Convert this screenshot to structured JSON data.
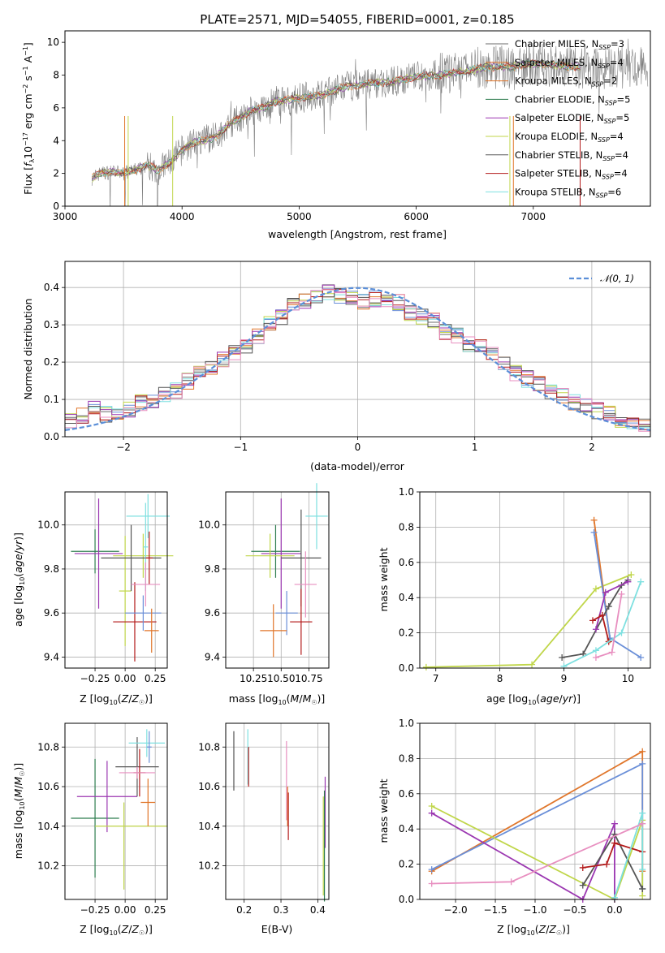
{
  "colors": {
    "palette": [
      "#6b6b6b",
      "#e0762b",
      "#6a8fd8",
      "#c0d64a",
      "#9b37b1",
      "#7ee0e0",
      "#555555",
      "#b31b1b",
      "#e88fc0"
    ],
    "gaussian": "#5b8fd8"
  },
  "chart_data": [
    {
      "type": "line",
      "title": "PLATE=2571, MJD=54055, FIBERID=0001, z=0.185",
      "xlabel": "wavelength [Angstrom, rest frame]",
      "ylabel": "Flux [fλ10⁻¹⁷ erg cm⁻² s⁻¹ A⁻¹]",
      "xlim": [
        3000,
        8000
      ],
      "ylim": [
        0,
        10.7
      ],
      "xticks": [
        "3000",
        "4000",
        "5000",
        "6000",
        "7000"
      ],
      "yticks": [
        "0",
        "2",
        "4",
        "6",
        "8",
        "10"
      ],
      "grid": false,
      "legend_position": "right",
      "series": [
        {
          "name": "Chabrier MILES, N_SSP=3",
          "color": "#6b6b6b"
        },
        {
          "name": "Salpeter MILES, N_SSP=4",
          "color": "#e0762b"
        },
        {
          "name": "Kroupa MILES, N_SSP=2",
          "color": "#e0762b"
        },
        {
          "name": "Chabrier ELODIE, N_SSP=5",
          "color": "#2e7d4f"
        },
        {
          "name": "Salpeter ELODIE, N_SSP=5",
          "color": "#9b37b1"
        },
        {
          "name": "Kroupa ELODIE, N_SSP=4",
          "color": "#c0d64a"
        },
        {
          "name": "Chabrier STELIB, N_SSP=4",
          "color": "#555555"
        },
        {
          "name": "Salpeter STELIB, N_SSP=4",
          "color": "#b31b1b"
        },
        {
          "name": "Kroupa STELIB, N_SSP=6",
          "color": "#7ee0e0"
        }
      ],
      "legend_display": [
        {
          "pre": "Chabrier MILES, N",
          "sub": "SSP",
          "post": "=3"
        },
        {
          "pre": "Salpeter MILES, N",
          "sub": "SSP",
          "post": "=4"
        },
        {
          "pre": "Kroupa MILES, N",
          "sub": "SSP",
          "post": "=2"
        },
        {
          "pre": "Chabrier ELODIE, N",
          "sub": "SSP",
          "post": "=5"
        },
        {
          "pre": "Salpeter ELODIE, N",
          "sub": "SSP",
          "post": "=5"
        },
        {
          "pre": "Kroupa ELODIE, N",
          "sub": "SSP",
          "post": "=4"
        },
        {
          "pre": "Chabrier STELIB, N",
          "sub": "SSP",
          "post": "=4"
        },
        {
          "pre": "Salpeter STELIB, N",
          "sub": "SSP",
          "post": "=4"
        },
        {
          "pre": "Kroupa STELIB, N",
          "sub": "SSP",
          "post": "=6"
        }
      ],
      "spectrum_envelope": {
        "x": [
          3230,
          3300,
          3400,
          3500,
          3600,
          3700,
          3800,
          3900,
          4000,
          4100,
          4200,
          4300,
          4400,
          4500,
          4600,
          4700,
          4800,
          4900,
          5000,
          5200,
          5400,
          5600,
          5800,
          6000,
          6200,
          6400,
          6600,
          6800,
          7000,
          7200,
          7400
        ],
        "y": [
          1.7,
          2.0,
          2.1,
          2.0,
          2.2,
          2.5,
          2.2,
          2.7,
          3.4,
          3.9,
          4.0,
          4.3,
          5.0,
          5.4,
          5.9,
          6.0,
          6.4,
          6.5,
          6.6,
          6.8,
          7.3,
          7.5,
          7.6,
          7.9,
          8.0,
          8.2,
          8.5,
          8.5,
          8.7,
          8.6,
          8.5
        ]
      }
    },
    {
      "type": "bar",
      "xlabel": "(data-model)/error",
      "ylabel": "Normed distribution",
      "xlim": [
        -2.5,
        2.5
      ],
      "ylim": [
        0,
        0.47
      ],
      "xticks": [
        "−2",
        "−1",
        "0",
        "1",
        "2"
      ],
      "yticks": [
        "0.0",
        "0.1",
        "0.2",
        "0.3",
        "0.4"
      ],
      "grid": true,
      "legend_position": "top-right",
      "legend": "𝒩(0, 1)",
      "histogram_bins": [
        -2.5,
        -2.4,
        -2.3,
        -2.2,
        -2.1,
        -2.0,
        -1.9,
        -1.8,
        -1.7,
        -1.6,
        -1.5,
        -1.4,
        -1.3,
        -1.2,
        -1.1,
        -1.0,
        -0.9,
        -0.8,
        -0.7,
        -0.6,
        -0.5,
        -0.4,
        -0.3,
        -0.2,
        -0.1,
        0.0,
        0.1,
        0.2,
        0.3,
        0.4,
        0.5,
        0.6,
        0.7,
        0.8,
        0.9,
        1.0,
        1.1,
        1.2,
        1.3,
        1.4,
        1.5,
        1.6,
        1.7,
        1.8,
        1.9,
        2.0,
        2.1,
        2.2,
        2.3,
        2.4,
        2.5
      ],
      "histogram_mean": [
        0.045,
        0.055,
        0.075,
        0.06,
        0.065,
        0.075,
        0.09,
        0.1,
        0.11,
        0.125,
        0.15,
        0.17,
        0.19,
        0.205,
        0.225,
        0.24,
        0.27,
        0.3,
        0.32,
        0.35,
        0.36,
        0.37,
        0.39,
        0.38,
        0.37,
        0.36,
        0.37,
        0.37,
        0.36,
        0.33,
        0.32,
        0.31,
        0.28,
        0.27,
        0.25,
        0.24,
        0.22,
        0.2,
        0.17,
        0.155,
        0.14,
        0.12,
        0.11,
        0.09,
        0.085,
        0.07,
        0.06,
        0.045,
        0.035,
        0.03
      ],
      "gaussian_mean": 0,
      "gaussian_sigma": 1
    },
    {
      "type": "scatter",
      "xlabel": "Z [log₁₀(Z/Z☉)]",
      "ylabel": "age  [log₁₀(age/yr)]",
      "xlim": [
        -0.5,
        0.35
      ],
      "ylim": [
        9.35,
        10.15
      ],
      "xticks": [
        -0.25,
        0.0,
        0.25
      ],
      "yticks": [
        9.4,
        9.6,
        9.8,
        10.0
      ],
      "xtick_labels": [
        "−0.25",
        "0.00",
        "0.25"
      ],
      "ytick_labels": [
        "9.4",
        "9.6",
        "9.8",
        "10.0"
      ],
      "grid": true,
      "errorbars": [
        {
          "x": -0.25,
          "xerr": 0.2,
          "y": 9.88,
          "yerr": 0.1,
          "color": "#2e7d4f"
        },
        {
          "x": -0.22,
          "xerr": 0.2,
          "y": 9.87,
          "yerr": 0.25,
          "color": "#9b37b1"
        },
        {
          "x": 0.15,
          "xerr": 0.25,
          "y": 9.86,
          "yerr": 0.1,
          "color": "#c0d64a"
        },
        {
          "x": 0.0,
          "xerr": 0.05,
          "y": 9.7,
          "yerr": 0.25,
          "color": "#c0d64a"
        },
        {
          "x": 0.05,
          "xerr": 0.25,
          "y": 9.85,
          "yerr": 0.15,
          "color": "#555555"
        },
        {
          "x": 0.19,
          "xerr": 0.18,
          "y": 10.04,
          "yerr": 0.1,
          "color": "#7ee0e0"
        },
        {
          "x": 0.17,
          "xerr": 0.02,
          "y": 9.9,
          "yerr": 0.2,
          "color": "#7ee0e0"
        },
        {
          "x": 0.2,
          "xerr": 0.03,
          "y": 9.85,
          "yerr": 0.12,
          "color": "#b31b1b"
        },
        {
          "x": 0.08,
          "xerr": 0.18,
          "y": 9.56,
          "yerr": 0.18,
          "color": "#b31b1b"
        },
        {
          "x": 0.17,
          "xerr": 0.12,
          "y": 9.73,
          "yerr": 0.1,
          "color": "#e88fc0"
        },
        {
          "x": 0.15,
          "xerr": 0.15,
          "y": 9.6,
          "yerr": 0.08,
          "color": "#6a8fd8"
        },
        {
          "x": 0.22,
          "xerr": 0.06,
          "y": 9.52,
          "yerr": 0.1,
          "color": "#e0762b"
        }
      ]
    },
    {
      "type": "scatter",
      "xlabel": "mass [log₁₀(M/M☉)]",
      "ylabel": "",
      "xlim": [
        10.0,
        10.93
      ],
      "ylim": [
        9.35,
        10.15
      ],
      "xticks": [
        10.25,
        10.5,
        10.75
      ],
      "yticks": [
        9.4,
        9.6,
        9.8,
        10.0
      ],
      "xtick_labels": [
        "10.25",
        "10.50",
        "10.75"
      ],
      "ytick_labels": [
        "9.4",
        "9.6",
        "9.8",
        "10.0"
      ],
      "grid": true,
      "errorbars": [
        {
          "x": 10.45,
          "xerr": 0.22,
          "y": 9.88,
          "yerr": 0.12,
          "color": "#2e7d4f"
        },
        {
          "x": 10.5,
          "xerr": 0.18,
          "y": 9.87,
          "yerr": 0.25,
          "color": "#9b37b1"
        },
        {
          "x": 10.4,
          "xerr": 0.22,
          "y": 9.86,
          "yerr": 0.1,
          "color": "#c0d64a"
        },
        {
          "x": 10.68,
          "xerr": 0.18,
          "y": 9.85,
          "yerr": 0.22,
          "color": "#555555"
        },
        {
          "x": 10.82,
          "xerr": 0.1,
          "y": 10.04,
          "yerr": 0.15,
          "color": "#7ee0e0"
        },
        {
          "x": 10.72,
          "xerr": 0.1,
          "y": 9.73,
          "yerr": 0.15,
          "color": "#e88fc0"
        },
        {
          "x": 10.55,
          "xerr": 0.1,
          "y": 9.6,
          "yerr": 0.1,
          "color": "#6a8fd8"
        },
        {
          "x": 10.43,
          "xerr": 0.12,
          "y": 9.52,
          "yerr": 0.12,
          "color": "#e0762b"
        },
        {
          "x": 10.68,
          "xerr": 0.1,
          "y": 9.56,
          "yerr": 0.15,
          "color": "#b31b1b"
        }
      ]
    },
    {
      "type": "line",
      "xlabel": "age  [log₁₀(age/yr)]",
      "ylabel": "mass weight",
      "xlim": [
        6.75,
        10.35
      ],
      "ylim": [
        0,
        1.0
      ],
      "xticks": [
        7,
        8,
        9,
        10
      ],
      "yticks": [
        0.0,
        0.2,
        0.4,
        0.6,
        0.8,
        1.0
      ],
      "xtick_labels": [
        "7",
        "8",
        "9",
        "10"
      ],
      "ytick_labels": [
        "0.0",
        "0.2",
        "0.4",
        "0.6",
        "0.8",
        "1.0"
      ],
      "grid": true,
      "series": [
        {
          "color": "#c0d64a",
          "x": [
            6.85,
            8.5,
            9.5,
            10.05
          ],
          "y": [
            0.005,
            0.02,
            0.45,
            0.53
          ]
        },
        {
          "color": "#e0762b",
          "x": [
            9.47,
            9.72
          ],
          "y": [
            0.84,
            0.16
          ]
        },
        {
          "color": "#6a8fd8",
          "x": [
            9.47,
            9.72,
            10.2
          ],
          "y": [
            0.77,
            0.17,
            0.06
          ]
        },
        {
          "color": "#555555",
          "x": [
            8.97,
            9.3,
            9.7,
            9.9,
            10.0
          ],
          "y": [
            0.06,
            0.08,
            0.35,
            0.47,
            0.5
          ]
        },
        {
          "color": "#9b37b1",
          "x": [
            9.5,
            9.65,
            10.0
          ],
          "y": [
            0.22,
            0.43,
            0.49
          ]
        },
        {
          "color": "#b31b1b",
          "x": [
            9.45,
            9.6,
            9.7
          ],
          "y": [
            0.27,
            0.3,
            0.15
          ]
        },
        {
          "color": "#7ee0e0",
          "x": [
            9.0,
            9.5,
            9.9,
            10.2
          ],
          "y": [
            0.01,
            0.1,
            0.2,
            0.49
          ]
        },
        {
          "color": "#e88fc0",
          "x": [
            9.5,
            9.75,
            9.9
          ],
          "y": [
            0.06,
            0.09,
            0.42
          ]
        }
      ]
    },
    {
      "type": "scatter",
      "xlabel": "Z [log₁₀(Z/Z☉)]",
      "ylabel": "mass [log₁₀(M/M☉)]",
      "xlim": [
        -0.5,
        0.35
      ],
      "ylim": [
        10.03,
        10.92
      ],
      "xticks": [
        -0.25,
        0.0,
        0.25
      ],
      "yticks": [
        10.2,
        10.4,
        10.6,
        10.8
      ],
      "xtick_labels": [
        "−0.25",
        "0.00",
        "0.25"
      ],
      "ytick_labels": [
        "10.2",
        "10.4",
        "10.6",
        "10.8"
      ],
      "grid": true,
      "errorbars": [
        {
          "x": -0.25,
          "xerr": 0.2,
          "y": 10.44,
          "yerr": 0.3,
          "color": "#2e7d4f"
        },
        {
          "x": -0.15,
          "xerr": 0.25,
          "y": 10.55,
          "yerr": 0.18,
          "color": "#9b37b1"
        },
        {
          "x": 0.05,
          "xerr": 0.3,
          "y": 10.4,
          "yerr": 0.0,
          "color": "#c0d64a"
        },
        {
          "x": -0.01,
          "xerr": 0.0,
          "y": 10.3,
          "yerr": 0.22,
          "color": "#c0d64a"
        },
        {
          "x": 0.1,
          "xerr": 0.18,
          "y": 10.7,
          "yerr": 0.15,
          "color": "#555555"
        },
        {
          "x": 0.18,
          "xerr": 0.15,
          "y": 10.82,
          "yerr": 0.07,
          "color": "#7ee0e0"
        },
        {
          "x": 0.12,
          "xerr": 0.05,
          "y": 10.67,
          "yerr": 0.12,
          "color": "#b31b1b"
        },
        {
          "x": 0.1,
          "xerr": 0.15,
          "y": 10.67,
          "yerr": 0.03,
          "color": "#e88fc0"
        },
        {
          "x": 0.19,
          "xerr": 0.06,
          "y": 10.52,
          "yerr": 0.12,
          "color": "#e0762b"
        },
        {
          "x": 0.2,
          "xerr": 0.02,
          "y": 10.8,
          "yerr": 0.08,
          "color": "#6a8fd8"
        }
      ]
    },
    {
      "type": "scatter",
      "xlabel": "E(B-V)",
      "ylabel": "",
      "xlim": [
        0.15,
        0.43
      ],
      "ylim": [
        10.03,
        10.92
      ],
      "xticks": [
        0.2,
        0.3,
        0.4
      ],
      "yticks": [
        10.2,
        10.4,
        10.6,
        10.8
      ],
      "xtick_labels": [
        "0.2",
        "0.3",
        "0.4"
      ],
      "ytick_labels": [
        "10.2",
        "10.4",
        "10.6",
        "10.8"
      ],
      "grid": true,
      "errorbars": [
        {
          "x": 0.172,
          "xerr": 0,
          "y": 10.73,
          "yerr": 0.15,
          "color": "#555555"
        },
        {
          "x": 0.21,
          "xerr": 0,
          "y": 10.75,
          "yerr": 0.14,
          "color": "#7ee0e0"
        },
        {
          "x": 0.212,
          "xerr": 0,
          "y": 10.7,
          "yerr": 0.1,
          "color": "#b31b1b"
        },
        {
          "x": 0.315,
          "xerr": 0,
          "y": 10.63,
          "yerr": 0.2,
          "color": "#e88fc0"
        },
        {
          "x": 0.318,
          "xerr": 0,
          "y": 10.5,
          "yerr": 0.1,
          "color": "#e0762b"
        },
        {
          "x": 0.32,
          "xerr": 0,
          "y": 10.45,
          "yerr": 0.12,
          "color": "#b31b1b"
        },
        {
          "x": 0.415,
          "xerr": 0,
          "y": 10.3,
          "yerr": 0.25,
          "color": "#c0d64a"
        },
        {
          "x": 0.42,
          "xerr": 0,
          "y": 10.47,
          "yerr": 0.18,
          "color": "#9b37b1"
        },
        {
          "x": 0.418,
          "xerr": 0,
          "y": 10.3,
          "yerr": 0.28,
          "color": "#2e7d4f"
        }
      ]
    },
    {
      "type": "line",
      "xlabel": "Z [log₁₀(Z/Z☉)]",
      "ylabel": "mass weight",
      "xlim": [
        -2.45,
        0.45
      ],
      "ylim": [
        0,
        1.0
      ],
      "xticks": [
        -2.0,
        -1.5,
        -1.0,
        -0.5,
        0.0
      ],
      "yticks": [
        0.0,
        0.2,
        0.4,
        0.6,
        0.8,
        1.0
      ],
      "xtick_labels": [
        "−2.0",
        "−1.5",
        "−1.0",
        "−0.5",
        "0.0"
      ],
      "ytick_labels": [
        "0.0",
        "0.2",
        "0.4",
        "0.6",
        "0.8",
        "1.0"
      ],
      "grid": true,
      "series": [
        {
          "color": "#e0762b",
          "x": [
            -2.3,
            0.35,
            0.35
          ],
          "y": [
            0.16,
            0.84,
            0.16
          ]
        },
        {
          "color": "#6a8fd8",
          "x": [
            -2.3,
            0.35,
            0.35
          ],
          "y": [
            0.17,
            0.77,
            0.06
          ]
        },
        {
          "color": "#c0d64a",
          "x": [
            -2.3,
            0.0,
            0.35,
            0.35
          ],
          "y": [
            0.53,
            0.0,
            0.45,
            0.02
          ]
        },
        {
          "color": "#9b37b1",
          "x": [
            -2.3,
            -0.4,
            0.0,
            0.0
          ],
          "y": [
            0.49,
            0.0,
            0.43,
            0.0
          ]
        },
        {
          "color": "#555555",
          "x": [
            -0.4,
            0.0,
            0.35,
            0.35
          ],
          "y": [
            0.08,
            0.37,
            0.06,
            0.06
          ]
        },
        {
          "color": "#b31b1b",
          "x": [
            -0.4,
            -0.1,
            0.0,
            0.35
          ],
          "y": [
            0.18,
            0.2,
            0.32,
            0.27
          ]
        },
        {
          "color": "#7ee0e0",
          "x": [
            0.0,
            0.35,
            0.35
          ],
          "y": [
            0.01,
            0.49,
            0.17
          ]
        },
        {
          "color": "#e88fc0",
          "x": [
            -2.3,
            -1.3,
            0.35
          ],
          "y": [
            0.09,
            0.1,
            0.43
          ]
        }
      ]
    }
  ]
}
